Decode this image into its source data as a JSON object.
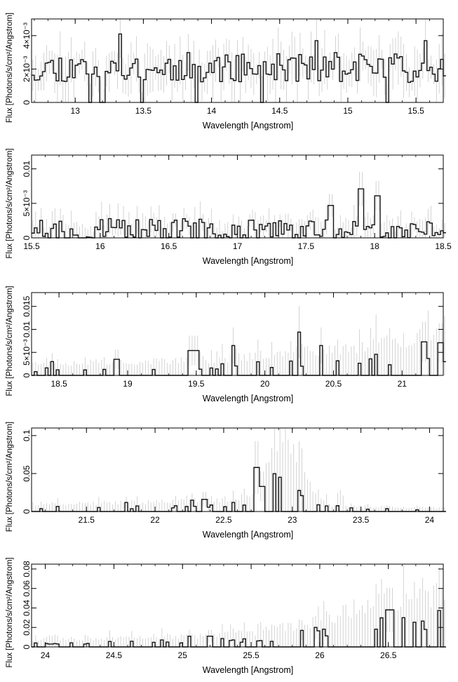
{
  "chart_data": [
    {
      "type": "line",
      "xlabel": "Wavelength [Angstrom]",
      "ylabel": "Flux [Photons/s/cm²/Angstrom]",
      "xlim": [
        12.68,
        15.7
      ],
      "ylim": [
        0,
        0.005
      ],
      "xticks": [
        13,
        13.5,
        14,
        14.5,
        15,
        15.5
      ],
      "xtick_labels": [
        "13",
        "13.5",
        "14",
        "14.5",
        "15",
        "15.5"
      ],
      "yticks": [
        0,
        0.002,
        0.004
      ],
      "ytick_labels": [
        "0",
        "2×10⁻³",
        "4×10⁻³"
      ],
      "step": 0.02,
      "base": 0.0021,
      "noise": 0.0009,
      "err": 0.0011,
      "features": [
        {
          "x": 13.33,
          "y": 0.0041
        },
        {
          "x": 14.77,
          "y": 0.0037
        },
        {
          "x": 15.57,
          "y": 0.0037
        }
      ],
      "seed": 11
    },
    {
      "type": "line",
      "xlabel": "Wavelength [Angstrom]",
      "ylabel": "Flux [Photons/s/cm²/Angstrom]",
      "xlim": [
        15.5,
        18.5
      ],
      "ylim": [
        0,
        0.012
      ],
      "xticks": [
        15.5,
        16,
        16.5,
        17,
        17.5,
        18,
        18.5
      ],
      "xtick_labels": [
        "15.5",
        "16",
        "16.5",
        "17",
        "17.5",
        "18",
        "18.5"
      ],
      "yticks": [
        0,
        0.005,
        0.01
      ],
      "ytick_labels": [
        "0",
        "5×10⁻³",
        "0.01"
      ],
      "step": 0.02,
      "base": 0.0014,
      "noise": 0.0014,
      "err": 0.0018,
      "features": [
        {
          "x": 17.68,
          "y": 0.0047
        },
        {
          "x": 17.9,
          "y": 0.0071
        },
        {
          "x": 18.02,
          "y": 0.0061
        }
      ],
      "seed": 23
    },
    {
      "type": "line",
      "xlabel": "Wavelength [Angstrom]",
      "ylabel": "Flux [Photons/s/cm²/Angstrom]",
      "xlim": [
        18.3,
        21.3
      ],
      "ylim": [
        0,
        0.018
      ],
      "xticks": [
        18.5,
        19,
        19.5,
        20,
        20.5,
        21
      ],
      "xtick_labels": [
        "18.5",
        "19",
        "19.5",
        "20",
        "20.5",
        "21"
      ],
      "yticks": [
        0,
        0.005,
        0.01,
        0.015
      ],
      "ytick_labels": [
        "0",
        "5×10⁻³",
        "0.01",
        "0.015"
      ],
      "step": 0.02,
      "envelope": [
        [
          18.3,
          0.0022
        ],
        [
          19.5,
          0.0027
        ],
        [
          20.5,
          0.0047
        ],
        [
          21.3,
          0.0075
        ]
      ],
      "spikes": [
        {
          "x": 18.45,
          "y": 0.003
        },
        {
          "x": 18.92,
          "y": 0.0035
        },
        {
          "x": 19.46,
          "y": 0.0054
        },
        {
          "x": 19.5,
          "y": 0.0054
        },
        {
          "x": 19.77,
          "y": 0.0065
        },
        {
          "x": 20.25,
          "y": 0.0094
        },
        {
          "x": 20.41,
          "y": 0.0065
        },
        {
          "x": 21.16,
          "y": 0.0073
        },
        {
          "x": 21.28,
          "y": 0.0071
        }
      ],
      "seed": 37
    },
    {
      "type": "line",
      "xlabel": "Wavelength [Angstrom]",
      "ylabel": "Flux [Photons/s/cm²/Angstrom]",
      "xlim": [
        21.1,
        24.1
      ],
      "ylim": [
        0,
        0.11
      ],
      "xticks": [
        21.5,
        22,
        22.5,
        23,
        23.5,
        24
      ],
      "xtick_labels": [
        "21.5",
        "22",
        "22.5",
        "23",
        "23.5",
        "24"
      ],
      "yticks": [
        0,
        0.05,
        0.1
      ],
      "ytick_labels": [
        "0",
        "0.05",
        "0.1"
      ],
      "step": 0.02,
      "envelope": [
        [
          21.1,
          0.008
        ],
        [
          22.5,
          0.012
        ],
        [
          22.75,
          0.02
        ],
        [
          22.88,
          0.07
        ],
        [
          22.95,
          0.079
        ],
        [
          23.05,
          0.06
        ],
        [
          23.15,
          0.02
        ],
        [
          23.3,
          0.006
        ],
        [
          24.1,
          0.004
        ]
      ],
      "bumps": [
        {
          "x": 23.35,
          "y": 0.024
        }
      ],
      "spikes": [
        {
          "x": 22.74,
          "y": 0.058
        },
        {
          "x": 22.78,
          "y": 0.033
        },
        {
          "x": 21.79,
          "y": 0.012
        },
        {
          "x": 22.36,
          "y": 0.016
        },
        {
          "x": 22.27,
          "y": 0.015
        }
      ],
      "seed": 41
    },
    {
      "type": "line",
      "xlabel": "Wavelength [Angstrom]",
      "ylabel": "Flux [Photons/s/cm²/Angstrom]",
      "xlim": [
        23.9,
        26.9
      ],
      "ylim": [
        0,
        0.085
      ],
      "xticks": [
        24,
        24.5,
        25,
        25.5,
        26,
        26.5
      ],
      "xtick_labels": [
        "24",
        "24.5",
        "25",
        "25.5",
        "26",
        "26.5"
      ],
      "yticks": [
        0,
        0.02,
        0.04,
        0.06,
        0.08
      ],
      "ytick_labels": [
        "0",
        "0.02",
        "0.04",
        "0.06",
        "0.08"
      ],
      "step": 0.02,
      "envelope": [
        [
          23.9,
          0.006
        ],
        [
          25.0,
          0.009
        ],
        [
          25.5,
          0.012
        ],
        [
          26.0,
          0.022
        ],
        [
          26.25,
          0.033
        ],
        [
          26.3,
          0.039
        ],
        [
          26.35,
          0.036
        ],
        [
          26.9,
          0.046
        ]
      ],
      "spikes": [
        {
          "x": 25.05,
          "y": 0.011
        },
        {
          "x": 25.2,
          "y": 0.011
        },
        {
          "x": 25.87,
          "y": 0.017
        },
        {
          "x": 25.97,
          "y": 0.02
        },
        {
          "x": 26.5,
          "y": 0.038
        },
        {
          "x": 26.52,
          "y": 0.038
        }
      ],
      "seed": 53
    }
  ]
}
